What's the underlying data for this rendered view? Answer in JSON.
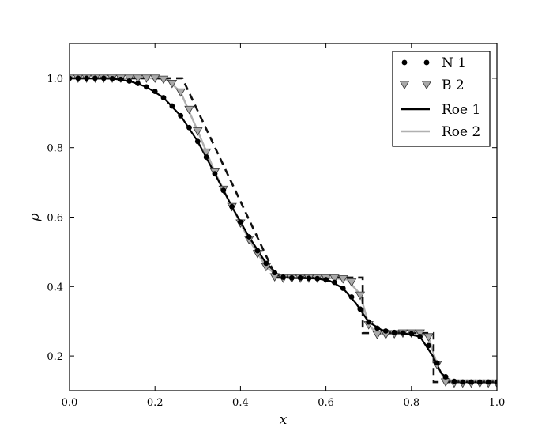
{
  "chart_data": {
    "type": "line",
    "xlabel": "x",
    "ylabel": "ρ",
    "xlim": [
      0.0,
      1.0
    ],
    "ylim": [
      0.1,
      1.1
    ],
    "xticks": [
      "0.0",
      "0.2",
      "0.4",
      "0.6",
      "0.8",
      "1.0"
    ],
    "yticks": [
      "0.2",
      "0.4",
      "0.6",
      "0.8",
      "1.0"
    ],
    "grid": false,
    "legend_position": "top-right",
    "legend": [
      "N 1",
      "B 2",
      "Roe 1",
      "Roe 2"
    ],
    "colors": {
      "n1": "#000000",
      "b2_fill": "#aaaaaa",
      "b2_edge": "#333333",
      "roe1": "#000000",
      "roe2": "#b0b0b0",
      "exact": "#111111"
    },
    "series": [
      {
        "name": "N 1",
        "style": "marker-circle",
        "x": [
          0.0,
          0.02,
          0.04,
          0.06,
          0.08,
          0.1,
          0.12,
          0.14,
          0.16,
          0.18,
          0.2,
          0.22,
          0.24,
          0.26,
          0.28,
          0.3,
          0.32,
          0.34,
          0.36,
          0.38,
          0.4,
          0.42,
          0.44,
          0.46,
          0.48,
          0.5,
          0.52,
          0.54,
          0.56,
          0.58,
          0.6,
          0.62,
          0.64,
          0.66,
          0.68,
          0.7,
          0.72,
          0.74,
          0.76,
          0.78,
          0.8,
          0.82,
          0.84,
          0.86,
          0.88,
          0.9,
          0.92,
          0.94,
          0.96,
          0.98,
          1.0
        ],
        "y": [
          1.0,
          1.0,
          1.0,
          1.0,
          1.0,
          0.999,
          0.997,
          0.992,
          0.985,
          0.975,
          0.962,
          0.944,
          0.92,
          0.892,
          0.858,
          0.818,
          0.773,
          0.725,
          0.677,
          0.63,
          0.586,
          0.543,
          0.503,
          0.467,
          0.44,
          0.427,
          0.425,
          0.425,
          0.424,
          0.423,
          0.42,
          0.412,
          0.395,
          0.37,
          0.335,
          0.298,
          0.28,
          0.272,
          0.268,
          0.266,
          0.264,
          0.256,
          0.23,
          0.18,
          0.14,
          0.127,
          0.125,
          0.125,
          0.125,
          0.125,
          0.125
        ]
      },
      {
        "name": "B 2",
        "style": "marker-triangle-down",
        "x": [
          0.0,
          0.02,
          0.04,
          0.06,
          0.08,
          0.1,
          0.12,
          0.14,
          0.16,
          0.18,
          0.2,
          0.22,
          0.24,
          0.26,
          0.28,
          0.3,
          0.32,
          0.34,
          0.36,
          0.38,
          0.4,
          0.42,
          0.44,
          0.46,
          0.48,
          0.5,
          0.52,
          0.54,
          0.56,
          0.58,
          0.6,
          0.62,
          0.64,
          0.66,
          0.68,
          0.7,
          0.72,
          0.74,
          0.76,
          0.78,
          0.8,
          0.82,
          0.84,
          0.86,
          0.88,
          0.9,
          0.92,
          0.94,
          0.96,
          0.98,
          1.0
        ],
        "y": [
          1.0,
          1.0,
          1.0,
          1.0,
          1.0,
          1.0,
          1.0,
          1.0,
          1.0,
          1.0,
          1.0,
          0.997,
          0.985,
          0.96,
          0.91,
          0.848,
          0.787,
          0.73,
          0.68,
          0.63,
          0.583,
          0.535,
          0.495,
          0.457,
          0.428,
          0.424,
          0.424,
          0.424,
          0.424,
          0.424,
          0.424,
          0.424,
          0.422,
          0.413,
          0.375,
          0.29,
          0.262,
          0.262,
          0.264,
          0.266,
          0.266,
          0.266,
          0.255,
          0.175,
          0.125,
          0.122,
          0.122,
          0.122,
          0.122,
          0.122,
          0.122
        ]
      },
      {
        "name": "Roe 1",
        "style": "line-solid",
        "x": [
          0.0,
          0.1,
          0.14,
          0.18,
          0.22,
          0.26,
          0.3,
          0.34,
          0.38,
          0.42,
          0.46,
          0.49,
          0.52,
          0.58,
          0.61,
          0.64,
          0.67,
          0.7,
          0.73,
          0.78,
          0.82,
          0.85,
          0.87,
          0.89,
          0.92,
          1.0
        ],
        "y": [
          1.0,
          0.999,
          0.992,
          0.975,
          0.944,
          0.892,
          0.818,
          0.725,
          0.63,
          0.543,
          0.467,
          0.432,
          0.425,
          0.423,
          0.416,
          0.395,
          0.352,
          0.298,
          0.275,
          0.266,
          0.256,
          0.2,
          0.15,
          0.13,
          0.125,
          0.125
        ]
      },
      {
        "name": "Roe 2",
        "style": "line-solid-gray",
        "x": [
          0.0,
          0.2,
          0.23,
          0.26,
          0.3,
          0.34,
          0.38,
          0.42,
          0.46,
          0.49,
          0.52,
          0.62,
          0.65,
          0.68,
          0.7,
          0.72,
          0.82,
          0.84,
          0.86,
          0.88,
          1.0
        ],
        "y": [
          1.0,
          1.0,
          0.995,
          0.96,
          0.848,
          0.73,
          0.63,
          0.535,
          0.457,
          0.428,
          0.424,
          0.424,
          0.42,
          0.378,
          0.29,
          0.263,
          0.266,
          0.255,
          0.175,
          0.125,
          0.122
        ]
      },
      {
        "style": "line-dashed",
        "x": [
          0.0,
          0.264,
          0.484,
          0.484,
          0.686,
          0.686,
          0.852,
          0.852,
          1.0
        ],
        "y": [
          1.0,
          1.0,
          0.426,
          0.426,
          0.426,
          0.266,
          0.266,
          0.125,
          0.125
        ]
      }
    ]
  }
}
